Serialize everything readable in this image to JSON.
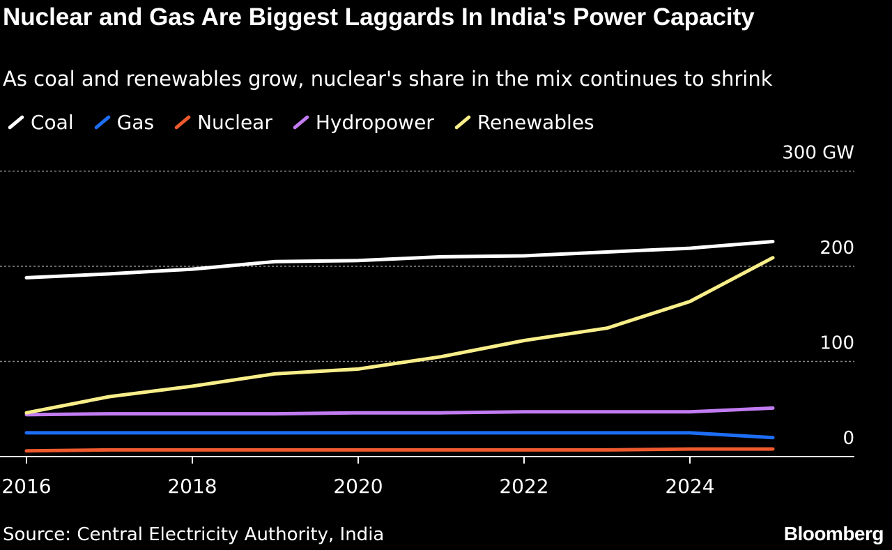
{
  "header": {
    "title": "Nuclear and Gas Are Biggest Laggards In India's Power Capacity",
    "subtitle": "As coal and renewables grow, nuclear's share in the mix continues to shrink"
  },
  "footer": {
    "source": "Source: Central Electricity Authority, India",
    "brand": "Bloomberg"
  },
  "chart_data": {
    "type": "line",
    "title": "Nuclear and Gas Are Biggest Laggards In India's Power Capacity",
    "subtitle": "As coal and renewables grow, nuclear's share in the mix continues to shrink",
    "x": [
      2016,
      2017,
      2018,
      2019,
      2020,
      2021,
      2022,
      2023,
      2024,
      2025
    ],
    "xticks": [
      2016,
      2018,
      2020,
      2022,
      2024
    ],
    "xtick_labels": [
      "2016",
      "2018",
      "2020",
      "2022",
      "2024"
    ],
    "xlim": [
      2016,
      2026
    ],
    "ylim": [
      0,
      300
    ],
    "yticks": [
      0,
      100,
      200,
      300
    ],
    "ytick_labels": [
      "0",
      "100",
      "200",
      "300 GW"
    ],
    "grid": true,
    "legend_position": "top-left",
    "series": [
      {
        "name": "Coal",
        "color": "#ffffff",
        "values": [
          188,
          192,
          197,
          205,
          206,
          210,
          211,
          215,
          219,
          226
        ]
      },
      {
        "name": "Gas",
        "color": "#1d6ef5",
        "values": [
          25,
          25,
          25,
          25,
          25,
          25,
          25,
          25,
          25,
          20
        ]
      },
      {
        "name": "Nuclear",
        "color": "#ee5a2e",
        "values": [
          6,
          7,
          7,
          7,
          7,
          7,
          7,
          7,
          8,
          8
        ]
      },
      {
        "name": "Hydropower",
        "color": "#c27cf2",
        "values": [
          44,
          45,
          45,
          45,
          46,
          46,
          47,
          47,
          47,
          51
        ]
      },
      {
        "name": "Renewables",
        "color": "#f8ee8a",
        "values": [
          46,
          63,
          74,
          87,
          92,
          105,
          122,
          135,
          163,
          209
        ]
      }
    ]
  }
}
